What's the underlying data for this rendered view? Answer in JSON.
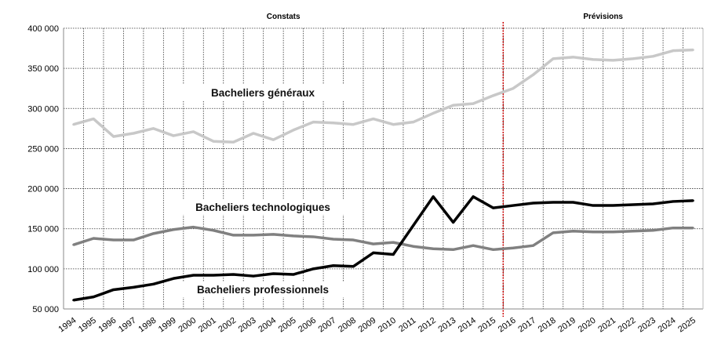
{
  "chart_data": {
    "type": "line",
    "title": "",
    "xlabel": "",
    "ylabel": "",
    "ylim": [
      50000,
      400000
    ],
    "yticks": [
      50000,
      100000,
      150000,
      200000,
      250000,
      300000,
      350000,
      400000
    ],
    "ytick_labels": [
      "50 000",
      "100 000",
      "150 000",
      "200 000",
      "250 000",
      "300 000",
      "350 000",
      "400 000"
    ],
    "grid": true,
    "categories": [
      "1994",
      "1995",
      "1996",
      "1997",
      "1998",
      "1999",
      "2000",
      "2001",
      "2002",
      "2003",
      "2004",
      "2005",
      "2006",
      "2007",
      "2008",
      "2009",
      "2010",
      "2011",
      "2012",
      "2013",
      "2014",
      "2015",
      "2016",
      "2017",
      "2018",
      "2019",
      "2020",
      "2021",
      "2022",
      "2023",
      "2024",
      "2025"
    ],
    "section_labels": {
      "observed": "Constats",
      "forecast": "Prévisions"
    },
    "forecast_start": "2016",
    "forecast_line_color": "#cc0000",
    "series": [
      {
        "name": "Bacheliers généraux",
        "color": "#c8c8c8",
        "values": [
          280000,
          287000,
          265000,
          269000,
          275000,
          266000,
          271000,
          259000,
          258000,
          269000,
          261000,
          273000,
          283000,
          282000,
          280000,
          287000,
          280000,
          283000,
          294000,
          304000,
          306000,
          316000,
          325000,
          342000,
          362000,
          364000,
          361000,
          360000,
          362000,
          365000,
          372000,
          373000
        ]
      },
      {
        "name": "Bacheliers technologiques",
        "color": "#808080",
        "values": [
          130000,
          138000,
          136000,
          136000,
          144000,
          149000,
          152000,
          148000,
          142000,
          142000,
          143000,
          141000,
          140000,
          137000,
          136000,
          131000,
          133000,
          128000,
          125000,
          124000,
          129000,
          124000,
          126000,
          129000,
          145000,
          147000,
          146000,
          146000,
          147000,
          148000,
          151000,
          151000
        ]
      },
      {
        "name": "Bacheliers professionnels",
        "color": "#000000",
        "values": [
          61000,
          65000,
          74000,
          77000,
          81000,
          88000,
          92000,
          92000,
          93000,
          91000,
          94000,
          93000,
          100000,
          104000,
          103000,
          120000,
          118000,
          154000,
          190000,
          158000,
          190000,
          176000,
          179000,
          182000,
          183000,
          183000,
          179000,
          179000,
          180000,
          181000,
          184000,
          185000
        ]
      }
    ]
  }
}
